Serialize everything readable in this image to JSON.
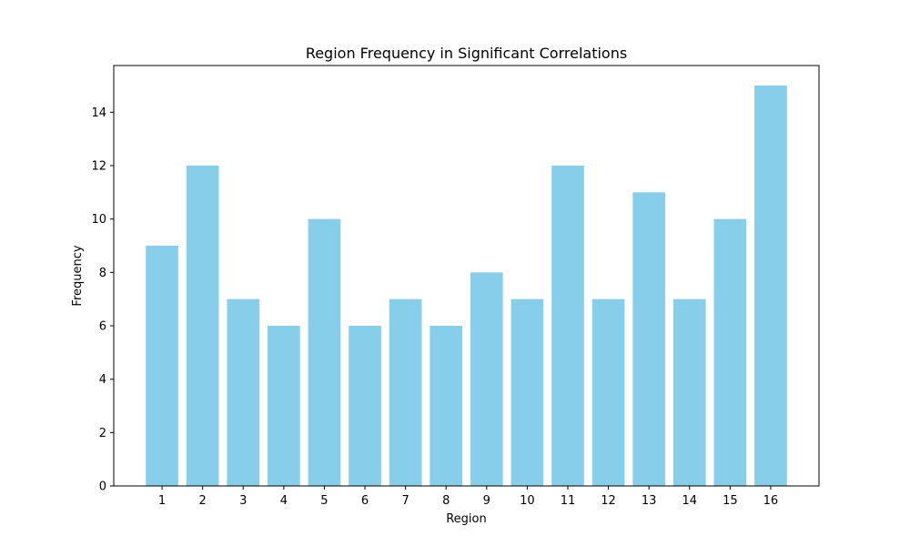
{
  "chart_data": {
    "type": "bar",
    "title": "Region Frequency in Significant Correlations",
    "xlabel": "Region",
    "ylabel": "Frequency",
    "categories": [
      "1",
      "2",
      "3",
      "4",
      "5",
      "6",
      "7",
      "8",
      "9",
      "10",
      "11",
      "12",
      "13",
      "14",
      "15",
      "16"
    ],
    "values": [
      9,
      12,
      7,
      6,
      10,
      6,
      7,
      6,
      8,
      7,
      12,
      7,
      11,
      7,
      10,
      15
    ],
    "ylim": [
      0,
      15.75
    ],
    "yticks": [
      0,
      2,
      4,
      6,
      8,
      10,
      12,
      14
    ],
    "grid": false,
    "legend": "none",
    "colors": {
      "bar": "#87CEEB",
      "axis": "#000000",
      "background": "#ffffff"
    }
  }
}
